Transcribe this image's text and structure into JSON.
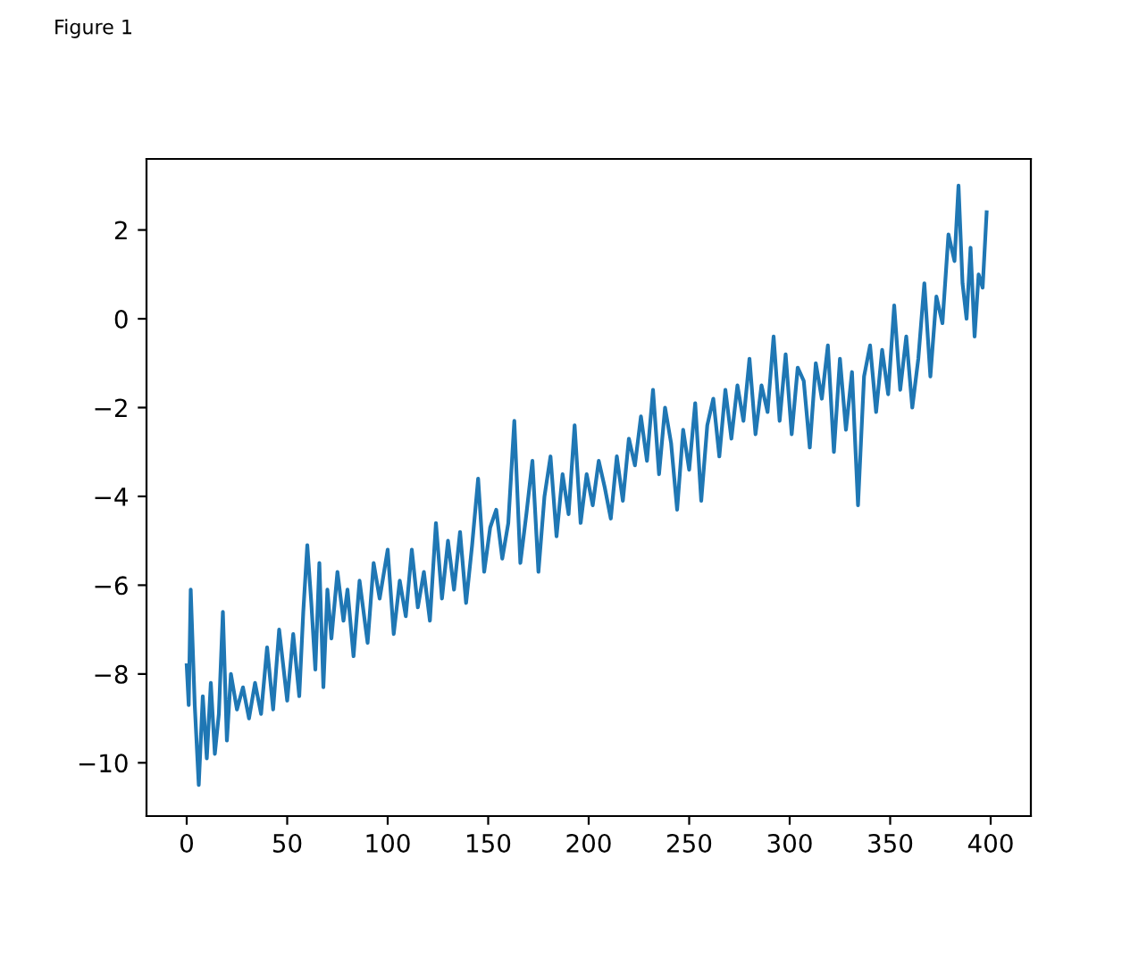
{
  "chart_data": {
    "type": "line",
    "annotations": [
      "Figure 1"
    ],
    "series": [
      {
        "color": "#1f77b4",
        "x": [
          0,
          1,
          2,
          4,
          6,
          8,
          10,
          12,
          14,
          16,
          18,
          20,
          22,
          25,
          28,
          31,
          34,
          37,
          40,
          43,
          46,
          50,
          53,
          56,
          58,
          60,
          62,
          64,
          66,
          68,
          70,
          72,
          75,
          78,
          80,
          83,
          86,
          90,
          93,
          96,
          100,
          103,
          106,
          109,
          112,
          115,
          118,
          121,
          124,
          127,
          130,
          133,
          136,
          139,
          142,
          145,
          148,
          151,
          154,
          157,
          160,
          163,
          166,
          169,
          172,
          175,
          178,
          181,
          184,
          187,
          190,
          193,
          196,
          199,
          202,
          205,
          208,
          211,
          214,
          217,
          220,
          223,
          226,
          229,
          232,
          235,
          238,
          241,
          244,
          247,
          250,
          253,
          256,
          259,
          262,
          265,
          268,
          271,
          274,
          277,
          280,
          283,
          286,
          289,
          292,
          295,
          298,
          301,
          304,
          307,
          310,
          313,
          316,
          319,
          322,
          325,
          328,
          331,
          334,
          337,
          340,
          343,
          346,
          349,
          352,
          355,
          358,
          361,
          364,
          367,
          370,
          373,
          376,
          379,
          382,
          384,
          386,
          388,
          390,
          392,
          394,
          396,
          398
        ],
        "values": [
          -7.8,
          -8.7,
          -6.1,
          -8.7,
          -10.5,
          -8.5,
          -9.9,
          -8.2,
          -9.8,
          -8.9,
          -6.6,
          -9.5,
          -8.0,
          -8.8,
          -8.3,
          -9.0,
          -8.2,
          -8.9,
          -7.4,
          -8.8,
          -7.0,
          -8.6,
          -7.1,
          -8.5,
          -6.6,
          -5.1,
          -6.4,
          -7.9,
          -5.5,
          -8.3,
          -6.1,
          -7.2,
          -5.7,
          -6.8,
          -6.1,
          -7.6,
          -5.9,
          -7.3,
          -5.5,
          -6.3,
          -5.2,
          -7.1,
          -5.9,
          -6.7,
          -5.2,
          -6.5,
          -5.7,
          -6.8,
          -4.6,
          -6.3,
          -5.0,
          -6.1,
          -4.8,
          -6.4,
          -5.1,
          -3.6,
          -5.7,
          -4.7,
          -4.3,
          -5.4,
          -4.6,
          -2.3,
          -5.5,
          -4.4,
          -3.2,
          -5.7,
          -4.0,
          -3.1,
          -4.9,
          -3.5,
          -4.4,
          -2.4,
          -4.6,
          -3.5,
          -4.2,
          -3.2,
          -3.8,
          -4.5,
          -3.1,
          -4.1,
          -2.7,
          -3.3,
          -2.2,
          -3.2,
          -1.6,
          -3.5,
          -2.0,
          -2.8,
          -4.3,
          -2.5,
          -3.4,
          -1.9,
          -4.1,
          -2.4,
          -1.8,
          -3.1,
          -1.6,
          -2.7,
          -1.5,
          -2.3,
          -0.9,
          -2.6,
          -1.5,
          -2.1,
          -0.4,
          -2.3,
          -0.8,
          -2.6,
          -1.1,
          -1.4,
          -2.9,
          -1.0,
          -1.8,
          -0.6,
          -3.0,
          -0.9,
          -2.5,
          -1.2,
          -4.2,
          -1.3,
          -0.6,
          -2.1,
          -0.7,
          -1.7,
          0.3,
          -1.6,
          -0.4,
          -2.0,
          -0.9,
          0.8,
          -1.3,
          0.5,
          -0.1,
          1.9,
          1.3,
          3.0,
          0.8,
          0.0,
          1.6,
          -0.4,
          1.0,
          0.7,
          2.4
        ]
      }
    ],
    "xlim": [
      -20,
      420
    ],
    "ylim": [
      -11.2,
      3.6
    ],
    "xticks": [
      0,
      50,
      100,
      150,
      200,
      250,
      300,
      350,
      400
    ],
    "yticks": [
      {
        "value": -10,
        "label": "−10"
      },
      {
        "value": -8,
        "label": "−8"
      },
      {
        "value": -6,
        "label": "−6"
      },
      {
        "value": -4,
        "label": "−4"
      },
      {
        "value": -2,
        "label": "−2"
      },
      0,
      2
    ]
  }
}
